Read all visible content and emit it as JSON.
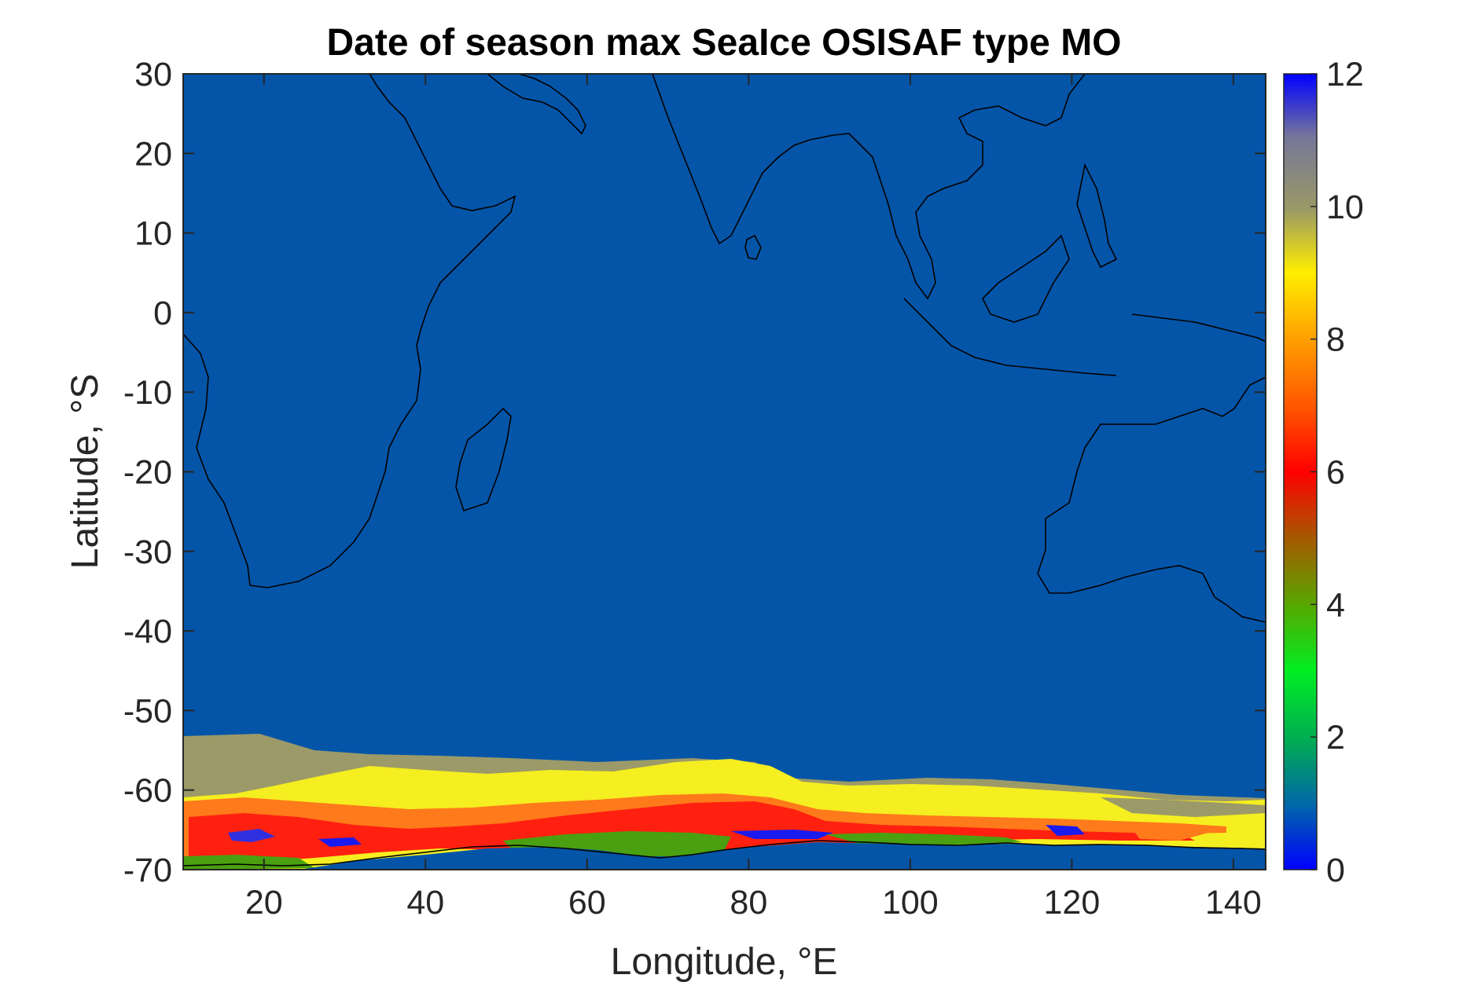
{
  "chart_data": {
    "type": "heatmap",
    "title": "Date of season max SeaIce OSISAF type MO",
    "xlabel": "Longitude, °E",
    "ylabel": "Latitude, °S",
    "xlim": [
      10,
      144
    ],
    "ylim": [
      -70,
      30
    ],
    "x_ticks": [
      20,
      40,
      60,
      80,
      100,
      120,
      140
    ],
    "y_ticks": [
      30,
      20,
      10,
      0,
      -10,
      -20,
      -30,
      -40,
      -50,
      -60,
      -70
    ],
    "colorbar": {
      "ticks": [
        0,
        2,
        4,
        6,
        8,
        10,
        12
      ],
      "range": [
        0,
        12
      ],
      "colors": [
        "#0000ff",
        "#00cc33",
        "#55aa00",
        "#ff0000",
        "#ff8800",
        "#ffff00",
        "#999966",
        "#0000ff"
      ]
    },
    "background_color": "#0455a8",
    "bands": [
      {
        "name": "band-gray-10",
        "color": "#9c9a68",
        "value": 10
      },
      {
        "name": "band-yellow-9",
        "color": "#f5ee20",
        "value": 9
      },
      {
        "name": "band-orange-7",
        "color": "#ff7a1a",
        "value": 7
      },
      {
        "name": "band-red-6",
        "color": "#ff2010",
        "value": 6
      },
      {
        "name": "band-green-4",
        "color": "#4aa010",
        "value": 4
      }
    ]
  }
}
